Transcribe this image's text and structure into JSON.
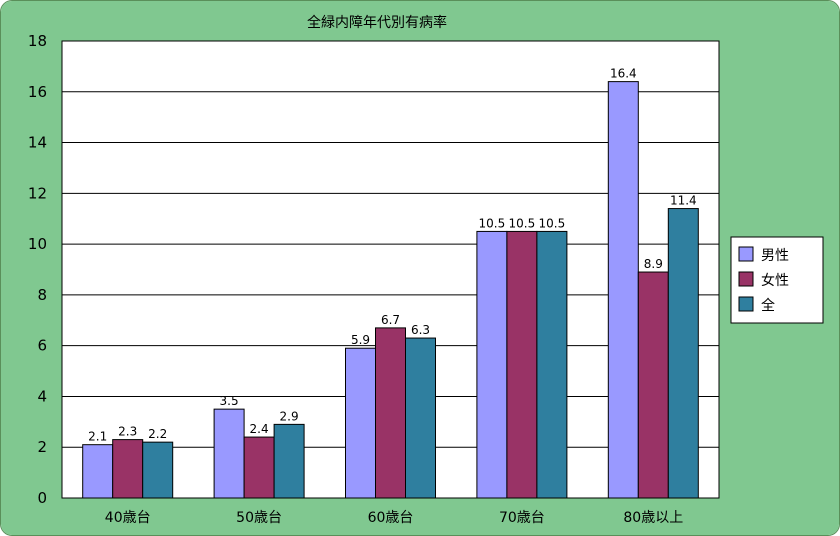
{
  "chart_data": {
    "type": "bar",
    "title": "全緑内障年代別有病率",
    "xlabel": "",
    "ylabel": "",
    "categories": [
      "40歳台",
      "50歳台",
      "60歳台",
      "70歳台",
      "80歳以上"
    ],
    "series": [
      {
        "name": "男性",
        "values": [
          2.1,
          3.5,
          5.9,
          10.5,
          16.4
        ],
        "labels": [
          "2.1",
          "3.5",
          "5.9",
          "10.5",
          "16.4"
        ],
        "color": "#9999ff"
      },
      {
        "name": "女性",
        "values": [
          2.3,
          2.4,
          6.7,
          10.5,
          8.9
        ],
        "labels": [
          "2.3",
          "2.4",
          "6.7",
          "10.5",
          "8.9"
        ],
        "color": "#993366"
      },
      {
        "name": "全",
        "values": [
          2.2,
          2.9,
          6.3,
          10.5,
          11.4
        ],
        "labels": [
          "2.2",
          "2.9",
          "6.3",
          "10.5",
          "11.4"
        ],
        "color": "#2f7f9f"
      }
    ],
    "ylim": [
      0,
      18
    ],
    "yticks": [
      0,
      2,
      4,
      6,
      8,
      10,
      12,
      14,
      16,
      18
    ],
    "grid": true,
    "legend": "right",
    "background_color": "#80c890",
    "plot_background_color": "#ffffff"
  }
}
